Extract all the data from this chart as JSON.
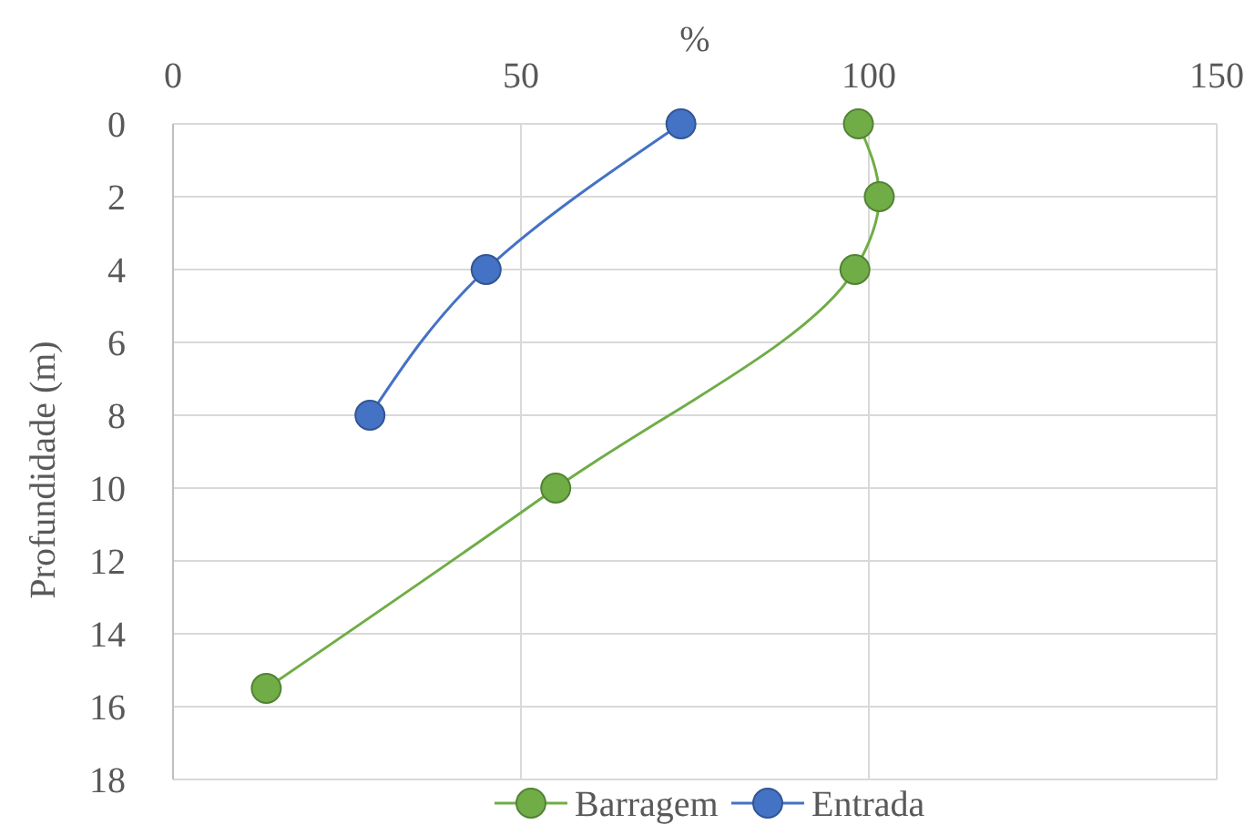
{
  "chart_data": {
    "type": "line",
    "xlabel": "%",
    "ylabel": "Profundidade (m)",
    "xlim": [
      0,
      150
    ],
    "xticks": [
      0,
      50,
      100,
      150
    ],
    "ylim": [
      18,
      0
    ],
    "yticks": [
      0,
      2,
      4,
      6,
      8,
      10,
      12,
      14,
      16,
      18
    ],
    "grid": true,
    "legend": "bottom",
    "marker": "circle",
    "line_style": "solid",
    "series": [
      {
        "name": "Barragem",
        "color": "#70ad47",
        "x": [
          98.5,
          101.5,
          98,
          55,
          13.4
        ],
        "values": [
          0,
          2,
          4,
          10,
          15.5
        ]
      },
      {
        "name": "Entrada",
        "color": "#4472c4",
        "x": [
          73,
          45,
          28.3
        ],
        "values": [
          0,
          4,
          8
        ]
      }
    ]
  }
}
